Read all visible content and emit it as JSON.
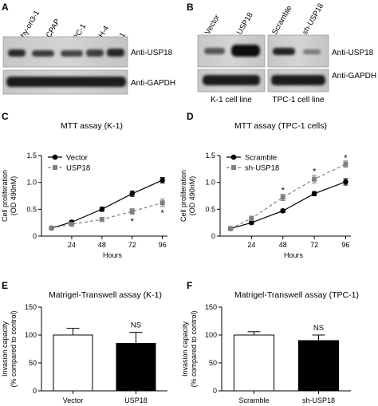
{
  "panels": {
    "A": {
      "label": "A",
      "lanes": [
        "Nthy-ori3-1",
        "B-CPAP",
        "TPC-1",
        "IHH-4",
        "K-1"
      ],
      "blots": [
        "Anti-USP18",
        "Anti-GAPDH"
      ]
    },
    "B": {
      "label": "B",
      "left_lanes": [
        "Vector",
        "USP18"
      ],
      "right_lanes": [
        "Scramble",
        "sh-USP18"
      ],
      "blots": [
        "Anti-USP18",
        "Anti-GAPDH"
      ],
      "left_caption": "K-1 cell line",
      "right_caption": "TPC-1 cell line"
    },
    "C": {
      "label": "C"
    },
    "D": {
      "label": "D"
    },
    "E": {
      "label": "E"
    },
    "F": {
      "label": "F"
    }
  },
  "chart_data": [
    {
      "id": "C",
      "type": "line",
      "title": "MTT assay (K-1)",
      "xlabel": "Hours",
      "ylabel": [
        "Cell proliferation",
        "(OD 490nM)"
      ],
      "x": [
        8,
        24,
        48,
        72,
        96
      ],
      "xticks": [
        "24",
        "48",
        "72",
        "96"
      ],
      "xtick_values": [
        24,
        48,
        72,
        96
      ],
      "xlim": [
        0,
        100
      ],
      "ylim": [
        0,
        1.5
      ],
      "yticks": [
        0,
        0.5,
        1.0,
        1.5
      ],
      "yticklabels": [
        "0",
        "0.5",
        "1.0",
        "1.5"
      ],
      "legend_position": "top-left",
      "series": [
        {
          "name": "Vector",
          "values": [
            0.15,
            0.26,
            0.5,
            0.79,
            1.04
          ],
          "err": [
            0.02,
            0.03,
            0.04,
            0.05,
            0.05
          ],
          "marker": "circle",
          "line": "solid",
          "color": "#000000"
        },
        {
          "name": "USP18",
          "values": [
            0.15,
            0.22,
            0.31,
            0.46,
            0.62
          ],
          "err": [
            0.02,
            0.03,
            0.04,
            0.05,
            0.07
          ],
          "marker": "square",
          "line": "dashed",
          "color": "#7f7f7f"
        }
      ],
      "annotations": [
        {
          "x": 72,
          "y": 0.28,
          "text": "*"
        },
        {
          "x": 96,
          "y": 0.44,
          "text": "*"
        }
      ]
    },
    {
      "id": "D",
      "type": "line",
      "title": "MTT assay (TPC-1 cells)",
      "xlabel": "Hours",
      "ylabel": [
        "Cell proliferation",
        "(OD 490nM)"
      ],
      "x": [
        8,
        24,
        48,
        72,
        96
      ],
      "xticks": [
        "24",
        "48",
        "72",
        "96"
      ],
      "xtick_values": [
        24,
        48,
        72,
        96
      ],
      "xlim": [
        0,
        100
      ],
      "ylim": [
        0,
        1.5
      ],
      "yticks": [
        0,
        0.5,
        1.0,
        1.5
      ],
      "yticklabels": [
        "0",
        "0.5",
        "1.0",
        "1.5"
      ],
      "legend_position": "top-left",
      "series": [
        {
          "name": "Scramble",
          "values": [
            0.14,
            0.25,
            0.47,
            0.79,
            1.01
          ],
          "err": [
            0.02,
            0.03,
            0.03,
            0.04,
            0.06
          ],
          "marker": "circle",
          "line": "solid",
          "color": "#000000"
        },
        {
          "name": "sh-USP18",
          "values": [
            0.14,
            0.33,
            0.72,
            1.06,
            1.34
          ],
          "err": [
            0.02,
            0.04,
            0.06,
            0.07,
            0.06
          ],
          "marker": "square",
          "line": "dashed",
          "color": "#7f7f7f"
        }
      ],
      "annotations": [
        {
          "x": 48,
          "y": 0.86,
          "text": "*"
        },
        {
          "x": 72,
          "y": 1.21,
          "text": "*"
        },
        {
          "x": 96,
          "y": 1.46,
          "text": "*"
        }
      ]
    },
    {
      "id": "E",
      "type": "bar",
      "title": "Matrigel-Transwell assay (K-1)",
      "categories": [
        "Vector",
        "USP18"
      ],
      "values": [
        100,
        85
      ],
      "err": [
        12,
        20
      ],
      "fills": [
        "#ffffff",
        "#000000"
      ],
      "ylabel": [
        "Invasion capacity",
        "(% compared to control)"
      ],
      "ylim": [
        0,
        150
      ],
      "yticks": [
        0,
        50,
        100,
        150
      ],
      "yticklabels": [
        "0",
        "50",
        "100",
        "150"
      ],
      "annotations": [
        {
          "category": "USP18",
          "text": "NS"
        }
      ]
    },
    {
      "id": "F",
      "type": "bar",
      "title": "Matrigel-Transwell assay (TPC-1)",
      "categories": [
        "Scramble",
        "sh-USP18"
      ],
      "values": [
        100,
        90
      ],
      "err": [
        6,
        10
      ],
      "fills": [
        "#ffffff",
        "#000000"
      ],
      "ylabel": [
        "Invasion capacity",
        "(% compared to control)"
      ],
      "ylim": [
        0,
        150
      ],
      "yticks": [
        0,
        50,
        100,
        150
      ],
      "yticklabels": [
        "0",
        "50",
        "100",
        "150"
      ],
      "annotations": [
        {
          "category": "sh-USP18",
          "text": "NS"
        }
      ]
    }
  ]
}
